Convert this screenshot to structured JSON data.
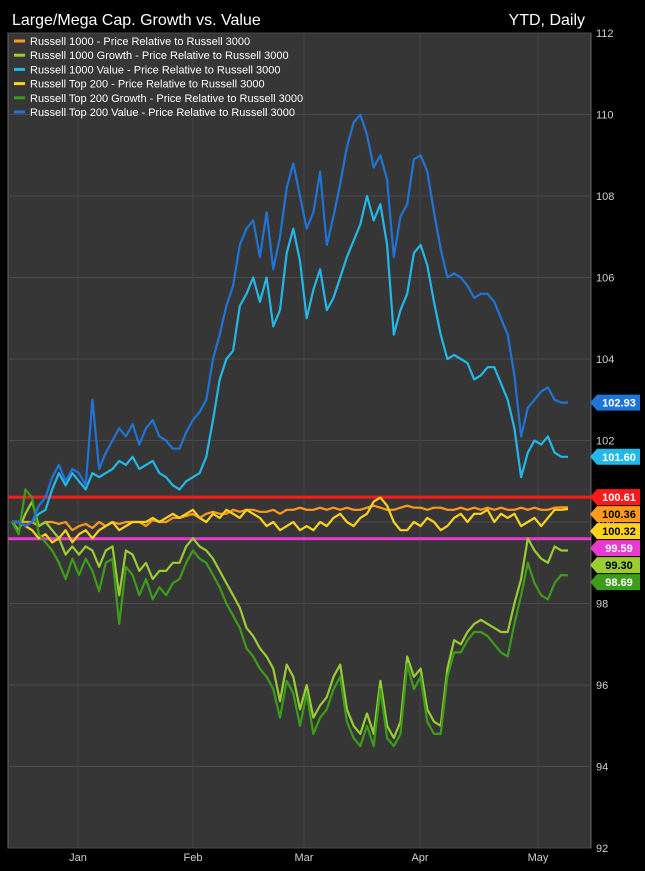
{
  "chart_data": {
    "type": "line",
    "title": "Large/Mega Cap. Growth vs. Value",
    "subtitle": "YTD, Daily",
    "ylim": [
      92,
      112
    ],
    "y_ticks": [
      92,
      94,
      96,
      98,
      100,
      102,
      104,
      106,
      108,
      110,
      112
    ],
    "x_ticks": [
      "Jan",
      "Feb",
      "Mar",
      "Apr",
      "May"
    ],
    "grid": true,
    "legend_position": "top-left",
    "hlines": [
      {
        "value": 100.61,
        "label": "100.61",
        "color": "#ff1a1a"
      },
      {
        "value": 99.59,
        "label": "99.59",
        "color": "#e83ad0"
      }
    ],
    "series": [
      {
        "name": "Russell 1000 - Price Relative to Russell 3000",
        "color": "#ff9a1f",
        "last_label": "100.36",
        "values": [
          100,
          100,
          100,
          100,
          99.9,
          100,
          100,
          99.95,
          100,
          99.8,
          99.9,
          99.95,
          99.85,
          100,
          99.9,
          100,
          99.95,
          100,
          100,
          100,
          99.9,
          100.05,
          100,
          100,
          100.1,
          100.1,
          100.15,
          100.2,
          100.1,
          100.2,
          100.25,
          100.2,
          100.2,
          100.3,
          100.25,
          100.3,
          100.3,
          100.25,
          100.25,
          100.3,
          100.2,
          100.3,
          100.3,
          100.35,
          100.3,
          100.3,
          100.35,
          100.3,
          100.35,
          100.3,
          100.35,
          100.3,
          100.3,
          100.35,
          100.4,
          100.35,
          100.3,
          100.3,
          100.35,
          100.4,
          100.35,
          100.35,
          100.3,
          100.35,
          100.35,
          100.3,
          100.3,
          100.35,
          100.3,
          100.35,
          100.3,
          100.35,
          100.3,
          100.35,
          100.3,
          100.3,
          100.35,
          100.3,
          100.35,
          100.3,
          100.3,
          100.35,
          100.36,
          100.36
        ]
      },
      {
        "name": "Russell 1000 Growth - Price Relative to Russell 3000",
        "color": "#9acd32",
        "last_label": "99.30",
        "values": [
          100,
          99.8,
          100.2,
          100.5,
          99.9,
          100,
          99.8,
          99.6,
          99.2,
          99.4,
          99.2,
          99.4,
          99.3,
          98.9,
          99.3,
          99.4,
          98.2,
          99.3,
          99.2,
          98.8,
          99.0,
          98.6,
          98.8,
          98.8,
          99.0,
          99.0,
          99.4,
          99.6,
          99.4,
          99.3,
          99.1,
          98.8,
          98.5,
          98.2,
          97.9,
          97.4,
          97.2,
          96.9,
          96.7,
          96.4,
          95.6,
          96.5,
          96.2,
          95.4,
          96.0,
          95.2,
          95.5,
          95.7,
          96.2,
          96.5,
          95.4,
          95.0,
          94.8,
          95.3,
          94.8,
          96.1,
          95.0,
          94.7,
          95.1,
          96.7,
          96.2,
          96.4,
          95.4,
          95.1,
          95.0,
          96.4,
          97.1,
          97.0,
          97.3,
          97.5,
          97.6,
          97.5,
          97.4,
          97.3,
          97.3,
          98.0,
          98.6,
          99.6,
          99.3,
          99.1,
          99.0,
          99.4,
          99.3,
          99.3
        ]
      },
      {
        "name": "Russell 1000 Value - Price Relative to Russell 3000",
        "color": "#22b8e8",
        "last_label": "101.60",
        "values": [
          100,
          100,
          99.9,
          100,
          100.2,
          100.3,
          100.8,
          101.2,
          100.9,
          101.2,
          101.0,
          100.8,
          101.2,
          101.1,
          101.2,
          101.3,
          101.5,
          101.4,
          101.6,
          101.3,
          101.4,
          101.5,
          101.2,
          101.1,
          100.9,
          100.8,
          101.0,
          101.1,
          101.2,
          101.6,
          102.5,
          103.5,
          104.0,
          104.2,
          105.3,
          105.6,
          106.0,
          105.4,
          106.0,
          104.8,
          105.2,
          106.6,
          107.2,
          106.4,
          105.0,
          105.7,
          106.2,
          105.2,
          105.5,
          106.0,
          106.5,
          106.9,
          107.3,
          108.0,
          107.4,
          107.8,
          106.8,
          104.6,
          105.2,
          105.6,
          106.6,
          106.8,
          106.3,
          105.4,
          104.6,
          104.0,
          104.1,
          104.0,
          103.9,
          103.5,
          103.6,
          103.8,
          103.8,
          103.4,
          103.0,
          102.3,
          101.1,
          101.7,
          102.0,
          101.9,
          102.1,
          101.7,
          101.6,
          101.6
        ]
      },
      {
        "name": "Russell Top 200 - Price Relative to Russell 3000",
        "color": "#ffd21c",
        "last_label": "100.32",
        "values": [
          100,
          100,
          99.9,
          99.8,
          99.6,
          99.7,
          99.5,
          99.6,
          99.8,
          99.5,
          99.7,
          99.8,
          99.6,
          99.8,
          99.9,
          100.0,
          99.8,
          99.9,
          100,
          100,
          100,
          100.1,
          100,
          100.1,
          100.2,
          100.1,
          100.2,
          100.3,
          100.1,
          100.0,
          100.2,
          100.1,
          100.3,
          100.2,
          100.1,
          100.3,
          100.2,
          100.1,
          99.9,
          100.0,
          99.8,
          99.9,
          100.0,
          99.8,
          99.9,
          99.8,
          100.0,
          99.9,
          100.1,
          100.2,
          100.0,
          99.9,
          100.1,
          100.2,
          100.5,
          100.6,
          100.4,
          100.0,
          99.8,
          99.8,
          100.0,
          99.9,
          100.1,
          100.0,
          99.8,
          99.9,
          100.1,
          100.2,
          100.0,
          100.2,
          100.2,
          100.3,
          100.0,
          100.2,
          100.1,
          100.2,
          99.9,
          100.0,
          100.1,
          99.9,
          100.1,
          100.3,
          100.3,
          100.32
        ]
      },
      {
        "name": "Russell Top 200 Growth - Price Relative to Russell 3000",
        "color": "#3d9c1a",
        "last_label": "98.69",
        "values": [
          100,
          99.7,
          100.8,
          100.6,
          99.7,
          99.5,
          99.3,
          99.0,
          98.6,
          99.1,
          98.7,
          99.1,
          98.8,
          98.3,
          99.0,
          99.1,
          97.5,
          98.9,
          98.7,
          98.2,
          98.6,
          98.1,
          98.4,
          98.2,
          98.5,
          98.6,
          99.0,
          99.3,
          99.1,
          99.0,
          98.7,
          98.4,
          98.0,
          97.7,
          97.4,
          96.9,
          96.7,
          96.4,
          96.2,
          95.9,
          95.2,
          96.1,
          95.8,
          95.0,
          95.8,
          94.8,
          95.2,
          95.4,
          95.9,
          96.2,
          95.1,
          94.7,
          94.5,
          95.0,
          94.5,
          95.9,
          94.7,
          94.5,
          94.8,
          96.5,
          95.9,
          96.2,
          95.1,
          94.8,
          94.8,
          96.2,
          96.8,
          96.8,
          97.1,
          97.3,
          97.3,
          97.2,
          97.0,
          96.8,
          96.7,
          97.5,
          98.2,
          99.0,
          98.5,
          98.2,
          98.1,
          98.5,
          98.7,
          98.69
        ]
      },
      {
        "name": "Russell Top 200 Value - Price Relative to Russell 3000",
        "color": "#1f74d6",
        "last_label": "102.93",
        "values": [
          100,
          100,
          99.9,
          100,
          100.4,
          100.6,
          101.1,
          101.4,
          101.0,
          101.3,
          101.2,
          100.9,
          103.0,
          101.3,
          101.7,
          102.0,
          102.3,
          102.1,
          102.4,
          101.9,
          102.3,
          102.5,
          102.1,
          102.0,
          101.8,
          101.8,
          102.2,
          102.5,
          102.7,
          103.0,
          104.0,
          104.6,
          105.3,
          105.8,
          106.8,
          107.2,
          107.4,
          106.5,
          107.6,
          106.2,
          107.0,
          108.2,
          108.8,
          108.0,
          107.2,
          107.6,
          108.6,
          106.8,
          107.5,
          108.3,
          109.2,
          109.8,
          110.0,
          109.5,
          108.7,
          109.0,
          108.4,
          106.5,
          107.5,
          107.8,
          108.9,
          109.0,
          108.6,
          107.6,
          106.7,
          106.0,
          106.1,
          106.0,
          105.8,
          105.5,
          105.6,
          105.6,
          105.4,
          105.0,
          104.6,
          103.6,
          102.1,
          102.8,
          103.0,
          103.2,
          103.3,
          103.0,
          102.93,
          102.93
        ]
      }
    ]
  }
}
